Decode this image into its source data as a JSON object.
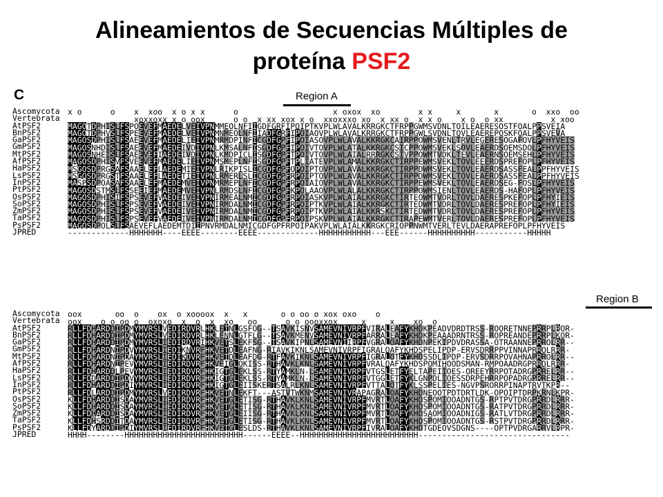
{
  "title": {
    "line1": "Alineamientos de Secuencias Múltiples de",
    "line2_prefix": "proteína ",
    "line2_accent": "PSF2",
    "accent_color": "#e41a1c"
  },
  "figure": {
    "panel_letter": "C",
    "region_a": "Region A",
    "region_b": "Region B",
    "block1": [
      {
        "name": "Ascomycota",
        "seq": "x o      o    x  xoo  x o x x      o                    x oxox  xo        x x     x       x       o  xxo  oo"
      },
      {
        "name": "Vertebrata",
        "seq": "              xoxxoxx x o oox      o o  x xx xox x o  xxoxxxo xo  x xx o  x x o    x o  o xx          x xoo"
      },
      {
        "name": "AtPSF2",
        "seq": "MAGQTDPHISLFSPQEVEFMAEDELVEIVPNMMEQLNFIIGDFGRFIPQIPTKVPLWLAVALKRRGKCTFRPPGWMSVDNLTQILEAERESQSTFQALPPSVEIA"
      },
      {
        "name": "BnPSF2",
        "seq": "MAGQTDPHVSLFSPEEVEFMAEDELVEIVPNMNMEQLNFIIADFGRFIPQIAQVPLWLAVALKRRGKCTFRPPGWLSVDNLTQVLEAEREPQSKFQALPPSVEVA"
      },
      {
        "name": "GaPSF2",
        "seq": "MAGQSDPHISLFSAEEVEFMAEDELIEIVPNMRMDPINFICGDFGPFIPQIASQVPLWLAVALKKRGKCAIRPPQWMSVENLTRVLEGERESQGAFQVLPFHYVEIS"
      },
      {
        "name": "GmPSF2",
        "seq": "MAGQSNHDISLFSAEEVEFMAEDEIVDIVPNLKMSALNFISGDFGPFIPQIVTQVPLWLATALKKRGKCSICPPQWMSVEKLSQVLEAERDSQEMSDQLPFHYVEIS"
      },
      {
        "name": "MtPSF2",
        "seq": "MAGQSNHEISLFSAEEVEFIAEDEIVDIVPNLKMDPICLISGDFGPFTPQIVTQVPLWLAIALRRRGKCSIVPPQWMTVDKLTEVLEAERNSQEMSEHLPFHYVEIS"
      },
      {
        "name": "AfPSF2",
        "seq": "MAGQSDPHISVFSVEEVEFMAEDELIEIVPNMSMEPLNFISGDFGPFTPLIATEVPLWLAMALKKRGKCTIRPPEWMSVEKLTQVLEEERDSPREFQPLPFHYVEIS"
      },
      {
        "name": "HaPSF2",
        "seq": "MSGQSDPRGSAFSAAELEFLAEDEMIEIVPNLRIKPISLICGDFGPFQPQIPTQVPLWLAVALKKRGKCTIRPPDWMSVEKLTQVLEAERDSASSFEALPPFHYVEIS"
      },
      {
        "name": "LsPSF2",
        "seq": "MSGQSDPRGSTFSAAELEFLAEDETIEIVPNLRMERLSLICGDFGPFRPQIPTQVPLWLAVALKKRGKCTIRPPDWMSVEKLTQVLEAERDSASSFEALPPFHYVEIS"
      },
      {
        "name": "InPSF2",
        "seq": "MASPSDPQASAFSAAELEFMAEDEMVEIVPNMRMEPLNFICGDFGPFRPQIAIQVPLWLAVALKKRGKCTIRPPEWMSVEKLTQVLEAERDSEG-FQSLPFHYVEIS"
      },
      {
        "name": "PtPSF2",
        "seq": "MAGQSDSTMSLFSSEEIEFMAEDEMVEIVPNLRMDSLNFICGDFGPFKPQLAAQVPLWLALALKKRGKCTIRPPQWMSIENLTQVLEAERDS-HAFQPLPFHYVEIS"
      },
      {
        "name": "OsPSF2",
        "seq": "MAGQSDPHISIFSPSEVEFVAEDEIVEIVPNIRMEALNMICGDFGPFRPQIASKVPLWLAIALKKRGKCTIRTEQWMTVDRLTQVLDAERESPKEFQPLPFHYIEIS"
      },
      {
        "name": "SoPSF2",
        "seq": "MAGQSDPHISLFSPSEVEFVAEDEIVEIVPNIRMDALNMICGDFGPFRPQIPTKVPLWLAIALKKRGKCTIRTEDWMTVDRLTQVLDAERESPREFQPLPFHYIEIS"
      },
      {
        "name": "ZmPSF2",
        "seq": "MAGQSDPHISLFSPSEVEFVAEDEIVEIVPNIRMDALNMICGDFGPFRPQIPTKVPLWLAIALKKRSKCTIRTEDWMTVDRLTQVLDAERESPREFQPLPFHYVEIS"
      },
      {
        "name": "TaPSF2",
        "seq": "MAGQSDPHISLFSPSEVEFVAEDEIVEIVPNIRMDALNMICGDFGPFRPQIPSKVPLWLAIALKKRGKCTIRAPEWMTVERLTQVLDAERESPREFQPLPFHYVEIS"
      },
      {
        "name": "PsPSF2",
        "seq": "MAGQSDPQLSLFSAEVEFLAEDEMTDIIPNVRMDALNMICGDFGPFRPQIPAKVPLWLAIALKKRGKCRIQPPNWMTVERLTEVLDAERAPREFQPLPFHYVEIS"
      },
      {
        "name": "JPRED",
        "seq": "-------------HHHHHHH----EEEE--------EEEE-------------HHHHHHHHHHH---EEE------HHHHHHHHHH-----------HHHHH"
      }
    ],
    "block2": [
      {
        "name": "Ascomycota",
        "seq": "oox       oo  o    ox  o xoooox  x   x       o o oo o xox oxo    o"
      },
      {
        "name": "Vertebrata",
        "seq": "oox    o o oo o  oxoxo  x  o  x  xo   oo      o o oooxxox     x     x    xo  o"
      },
      {
        "name": "AtPSF2",
        "seq": "RLLFDHARDDIPDMYMVRSLVEDIRDVRLHKLETNLGSFQG--TSAVKISNVSAMEVNIVRPFVIRALEAFYKHDKPEADVDRDTRSS-RQQRETNNEPRRPLRQR-"
      },
      {
        "name": "BnPSF2",
        "seq": "RLLFDHARDDIPDMYMVRSLVEDIRDVRLHKLENNLGTFLG--TSAVKMENVSAMEVNIVRPFARRALEAFYKHDKPEAAADRNTRSS-RQPREANDEPRRPLKQR-"
      },
      {
        "name": "GaPSF2",
        "seq": "RLLFDHARDDIPDMYMVRSLIEDIRDVRIHKVETSLEKFSG--TSAVKIPNLSAMEVNIIRPFVGRALQAFYKHDNPEKIPDVDRASSA-QTRAANNEPRRQLRR--"
      },
      {
        "name": "GmPSF2",
        "seq": "RLLFDHARDNIPDVYMVRSLIEDIKNVRFHKVETDLEAFNG-RIAVKIKNLSAMEVNIVRPFIGRALQAFYKHDSPELIPDP-ERVSDRRPPVINNAPRRQLRRR-"
      },
      {
        "name": "MtPSF2",
        "seq": "RLLFDHARDNIPDAYMVRSLIEDIKDVRFHKVETDLEAFDG-RTFAVKIKNLSAMEVNIVRPFIGRALQTFYKHDSSDLIPDP-ERVSDRRPQVAHNAPRRQLRR--"
      },
      {
        "name": "AfPSF2",
        "seq": "RLLFDHARDNIPEVYMVRSLIEDIRDVRFHKVEIGLQKISS-RTHAVKLKNLSAMEVNIVRPFVRALQAFYKHDSPQMIHQQDSMAN-RMPQAADRGPRRDLRRR-"
      },
      {
        "name": "HaPSF2",
        "seq": "RLLFDHARDDLPEVYMVRSLIEDIRDVRFHKIGTGLEKLSS-RTYAMKLN-LSAMEVNIVRPFVTGSLETFYELTAPEIIQES-QREEYRRPQTADRGPRRELRR--"
      },
      {
        "name": "LsPSF2",
        "seq": "RLLFDDARDDIPDVYMVRSLIEDIRDVRFHKIGTGLEKLSS-RTYAMKLN-LSAMEVNIVRPFVTGGLETFYKLGNPDLIQESSDRPEHRRPQPADRGPRRELRR--"
      },
      {
        "name": "InPSF2",
        "seq": "RLLFDHARDDIPDIYMVRSLIEDIRDVRFHKIGTGLEIISKERTSALRLKNLSAMEVNIVRPFVTTALQTFYKLSSPELIES-NGVPSRQRRPINAPTRVTKPR--"
      },
      {
        "name": "PtPSF2",
        "seq": "RLLFDLARDDIPDMYMVRSLVEDIRDVRFHKVETNLEKFT---ASTVTWKNMSAMEVNIVRAPAGRALQAFYKHDNEQQTPDTDRTLDK-QPQIPTDRPKRNLKPR-"
      },
      {
        "name": "OsPSF2",
        "seq": "KLLFDHARDDISDAYMVRSLIEDIRDVRFHKVETGLETISG-RTHAVKLKNLSAMEVNIVRPFMVRTLQAFYKHDSPQMIQQADNTGS-RPTPVTDRGPRRDLRRR-"
      },
      {
        "name": "SoPSF2",
        "seq": "KLLFDHARDDISDAYMVRSLIEDIRDVRFHKVETGLETISG-RTHAVKLKNLSAMEVNIVRPFMVRTLQAFYKHDSPQMIQQADNTGS-RATPVTDRGPRRDLRRR-"
      },
      {
        "name": "ZmPSF2",
        "seq": "KLLFDHARDDISDAYMVRSLIEDIRDVRFHKVETGLEIISG-RTHAVKLKNLSAMEVNIVRPFMVRTLQAFYKHDSAQMIQQADNIGS-RATLVTDRGPRRDLRRR-"
      },
      {
        "name": "TaPSF2",
        "seq": "KLLFDHSRDDITDAYMVRSLIEDIRDVRFHKVETGLETISG-RTHAVKLKNLSAMEVNIVRPFMVRTLQAFYKHDSPQMIQQADNTGS-RSTPVTDRGPRRDLRRR-"
      },
      {
        "name": "PsPSF2",
        "seq": "KLLFDYARDDIPDIYMVRSLIEDIRDVRFHKVETGLESLDS-RTHAVKLKNLSAMEVNIVRPFIVRALQAFYKHDTGDEQVSDGNS----QPTPVDRGARRVLRPR-"
      },
      {
        "name": "JPRED",
        "seq": "HHHH--------HHHHHHHHHHHHHHHHHHHHHHHHH------EEEE--HHHHHHHHHHHHHHHHHHHHHHHHH--------------------------------"
      }
    ]
  }
}
